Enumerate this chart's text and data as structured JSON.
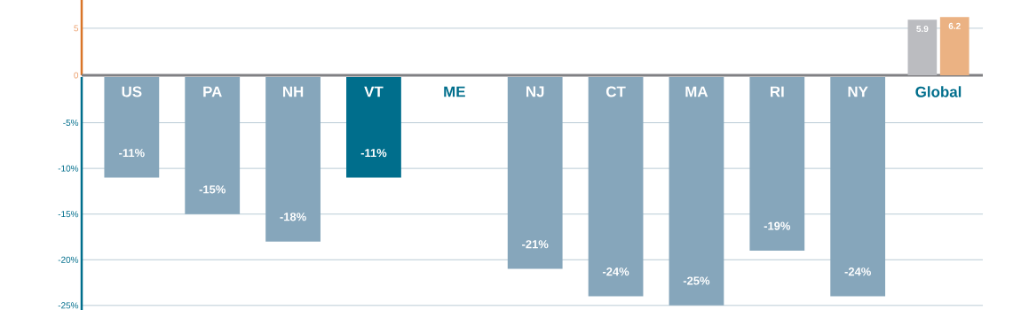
{
  "chart_data": [
    {
      "type": "bar",
      "ylim": [
        0,
        8
      ],
      "yticks": [
        0,
        5
      ],
      "grid": "y",
      "tick_labels": "y",
      "series": [
        {
          "colors": [
            "#bbbcc0",
            "#bbbcc0",
            "#bbbcc0",
            "#808083",
            "#bbbcc0",
            "#bbbcc0",
            "#bbbcc0",
            "#bbbcc0",
            "#bbbcc0",
            "#bbbcc0",
            "#bbbcc0"
          ],
          "values": [
            null,
            null,
            null,
            null,
            null,
            null,
            null,
            null,
            null,
            null,
            5.9
          ],
          "value_labels": [
            null,
            null,
            null,
            null,
            null,
            null,
            null,
            null,
            null,
            null,
            "5.9"
          ]
        },
        {
          "colors": [
            "#ebb283",
            "#ebb283",
            "#ebb283",
            "#d97528",
            "#ebb283",
            "#ebb283",
            "#ebb283",
            "#ebb283",
            "#ebb283",
            "#ebb283",
            "#ebb283"
          ],
          "values": [
            null,
            null,
            null,
            null,
            null,
            null,
            null,
            null,
            null,
            null,
            6.2
          ],
          "value_labels": [
            null,
            null,
            null,
            null,
            null,
            null,
            null,
            null,
            null,
            null,
            "6.2"
          ]
        }
      ]
    },
    {
      "type": "bar",
      "categories": [
        "US",
        "PA",
        "NH",
        "VT",
        "ME",
        "NJ",
        "CT",
        "MA",
        "RI",
        "NY",
        "Global"
      ],
      "ylim": [
        -25.5,
        0
      ],
      "yticks": [
        {
          "value": -5,
          "label": "-5%"
        },
        {
          "value": -10,
          "label": "-10%"
        },
        {
          "value": -15,
          "label": "-15%"
        },
        {
          "value": -20,
          "label": "-20%"
        },
        {
          "value": -25,
          "label": "-25%"
        }
      ],
      "grid": "y",
      "values": [
        -11,
        -15,
        -18,
        -11,
        null,
        -21,
        -24,
        -25,
        -19,
        -24,
        null
      ],
      "colors": [
        "#86a6bb",
        "#86a6bb",
        "#86a6bb",
        "#006e8c",
        "#86a6bb",
        "#86a6bb",
        "#86a6bb",
        "#86a6bb",
        "#86a6bb",
        "#86a6bb",
        "#86a6bb"
      ],
      "value_labels": [
        "-11%",
        "-15%",
        "-18%",
        "-11%",
        null,
        "-21%",
        "-24%",
        "-25%",
        "-19%",
        "-24%",
        null
      ]
    }
  ]
}
